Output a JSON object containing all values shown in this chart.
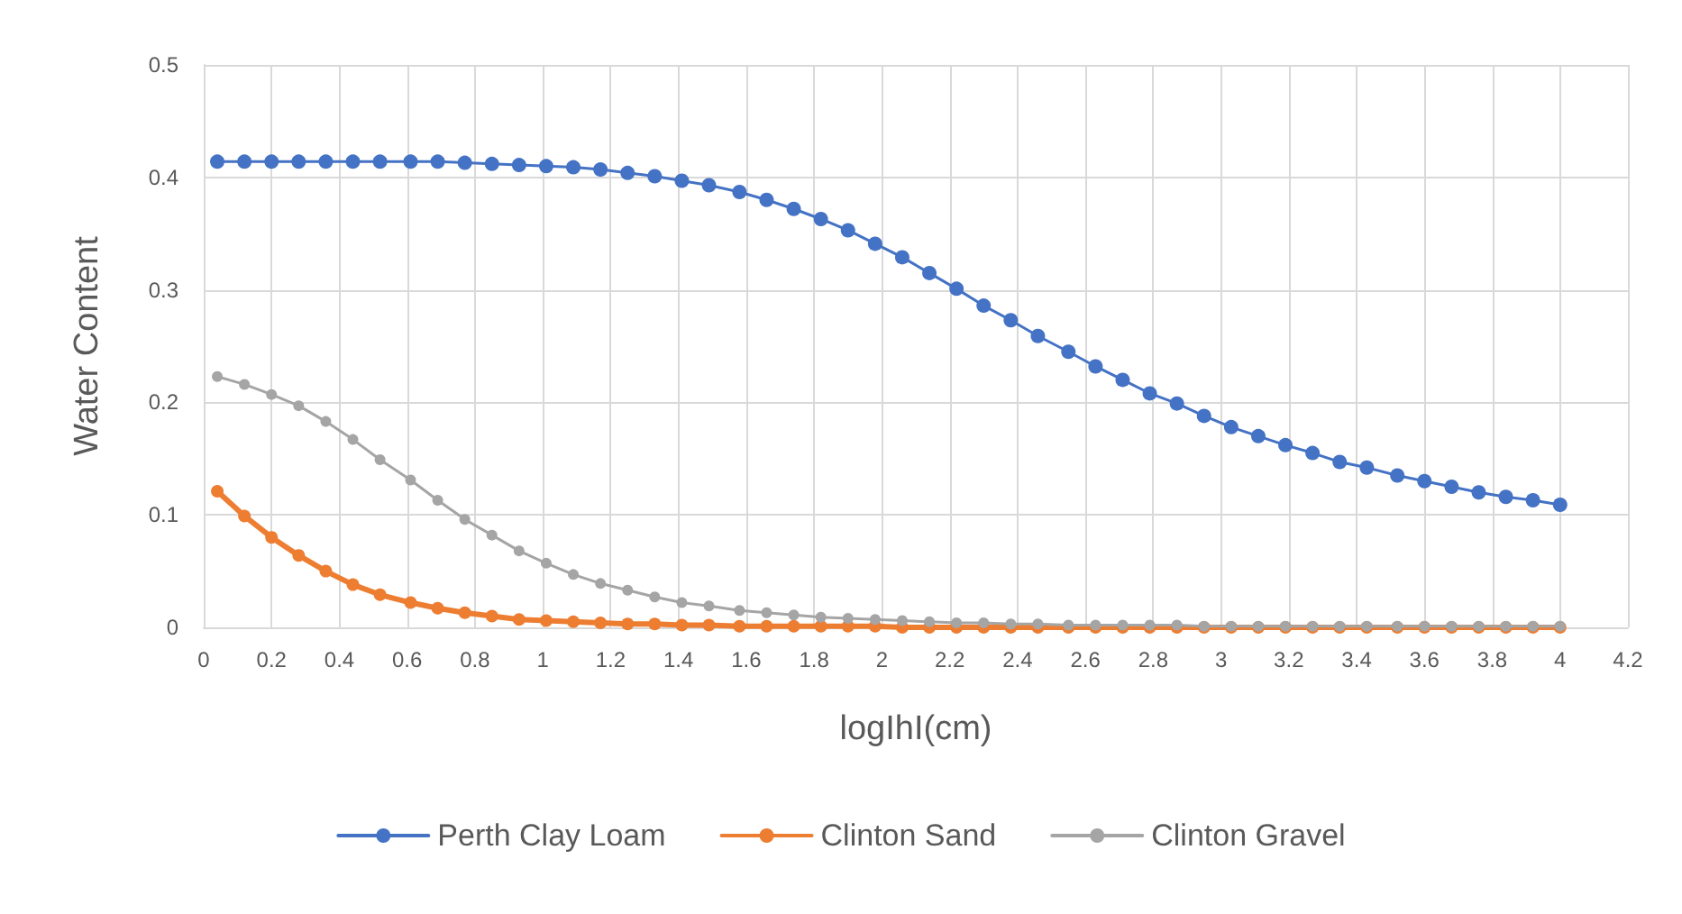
{
  "chart_data": {
    "type": "line",
    "xlabel": "logIhI(cm)",
    "ylabel": "Water Content",
    "x": [
      0.04,
      0.12,
      0.2,
      0.28,
      0.36,
      0.44,
      0.52,
      0.61,
      0.69,
      0.77,
      0.85,
      0.93,
      1.01,
      1.09,
      1.17,
      1.25,
      1.33,
      1.41,
      1.49,
      1.58,
      1.66,
      1.74,
      1.82,
      1.9,
      1.98,
      2.06,
      2.14,
      2.22,
      2.3,
      2.38,
      2.46,
      2.55,
      2.63,
      2.71,
      2.79,
      2.87,
      2.95,
      3.03,
      3.11,
      3.19,
      3.27,
      3.35,
      3.43,
      3.52,
      3.6,
      3.68,
      3.76,
      3.84,
      3.92,
      4.0
    ],
    "series": [
      {
        "name": "Perth Clay Loam",
        "color": "#4472c4",
        "values": [
          0.414,
          0.414,
          0.414,
          0.414,
          0.414,
          0.414,
          0.414,
          0.414,
          0.414,
          0.413,
          0.412,
          0.411,
          0.41,
          0.409,
          0.407,
          0.404,
          0.401,
          0.397,
          0.393,
          0.387,
          0.38,
          0.372,
          0.363,
          0.353,
          0.341,
          0.329,
          0.315,
          0.301,
          0.286,
          0.273,
          0.259,
          0.245,
          0.232,
          0.22,
          0.208,
          0.199,
          0.188,
          0.178,
          0.17,
          0.162,
          0.155,
          0.147,
          0.142,
          0.135,
          0.13,
          0.125,
          0.12,
          0.116,
          0.113,
          0.109
        ]
      },
      {
        "name": "Clinton Sand",
        "color": "#ed7d31",
        "values": [
          0.121,
          0.099,
          0.08,
          0.064,
          0.05,
          0.038,
          0.029,
          0.022,
          0.017,
          0.013,
          0.01,
          0.007,
          0.006,
          0.005,
          0.004,
          0.003,
          0.003,
          0.002,
          0.002,
          0.001,
          0.001,
          0.001,
          0.001,
          0.001,
          0.001,
          0,
          0,
          0,
          0,
          0,
          0,
          0,
          0,
          0,
          0,
          0,
          0,
          0,
          0,
          0,
          0,
          0,
          0,
          0,
          0,
          0,
          0,
          0,
          0,
          0
        ]
      },
      {
        "name": "Clinton Gravel",
        "color": "#a5a5a5",
        "values": [
          0.223,
          0.216,
          0.207,
          0.197,
          0.183,
          0.167,
          0.149,
          0.131,
          0.113,
          0.096,
          0.082,
          0.068,
          0.057,
          0.047,
          0.039,
          0.033,
          0.027,
          0.022,
          0.019,
          0.015,
          0.013,
          0.011,
          0.009,
          0.008,
          0.007,
          0.006,
          0.005,
          0.004,
          0.004,
          0.003,
          0.003,
          0.002,
          0.002,
          0.002,
          0.002,
          0.002,
          0.001,
          0.001,
          0.001,
          0.001,
          0.001,
          0.001,
          0.001,
          0.001,
          0.001,
          0.001,
          0.001,
          0.001,
          0.001,
          0.001
        ]
      }
    ],
    "xlim": [
      0,
      4.2
    ],
    "xticks": [
      0,
      0.2,
      0.4,
      0.6,
      0.8,
      1,
      1.2,
      1.4,
      1.6,
      1.8,
      2,
      2.2,
      2.4,
      2.6,
      2.8,
      3,
      3.2,
      3.4,
      3.6,
      3.8,
      4,
      4.2
    ],
    "ylim": [
      0,
      0.5
    ],
    "yticks": [
      0,
      0.1,
      0.2,
      0.3,
      0.4,
      0.5
    ],
    "grid": true,
    "legend": "bottom",
    "marker": "circle",
    "line_style": "solid"
  }
}
